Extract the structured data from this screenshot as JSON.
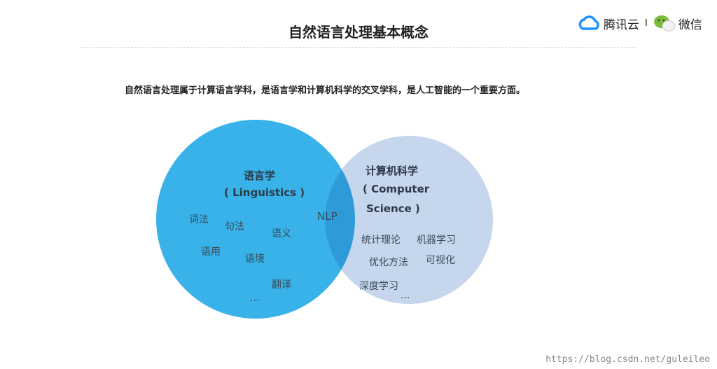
{
  "header": {
    "title": "自然语言处理基本概念",
    "logo_tencent": "腾讯云",
    "logo_separator": "I",
    "logo_wechat": "微信"
  },
  "subtitle": "自然语言处理属于计算语言学科，是语言学和计算机科学的交叉学科，是人工智能的一个重要方面。",
  "venn": {
    "colors": {
      "left": "#38b2e8",
      "right": "#c6d6ec",
      "overlap": "#2e9bd9"
    },
    "left": {
      "title": "语言学",
      "subtitle": "( Linguistics )",
      "items": [
        "词法",
        "句法",
        "语义",
        "语用",
        "语境",
        "翻译",
        "..."
      ]
    },
    "right": {
      "title": "计算机科学",
      "subtitle_line1": "( Computer",
      "subtitle_line2": "Science )",
      "items": [
        "统计理论",
        "机器学习",
        "优化方法",
        "可视化",
        "深度学习",
        "..."
      ]
    },
    "overlap": {
      "label": "NLP"
    }
  },
  "watermark": "https://blog.csdn.net/guleileo"
}
